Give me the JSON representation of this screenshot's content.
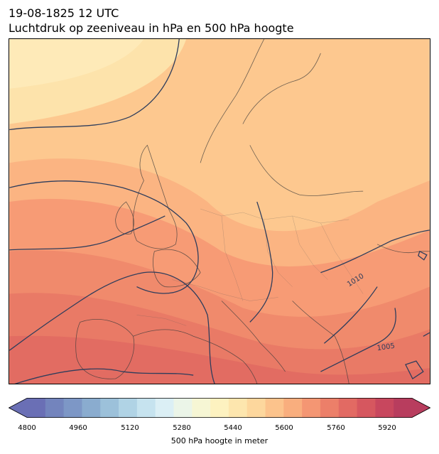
{
  "title": {
    "line1": "19-08-1825 12 UTC",
    "line2": "Luchtdruk op zeeniveau in hPa en 500 hPa hoogte"
  },
  "isobar_labels": [
    "1010",
    "1005"
  ],
  "colorbar": {
    "label": "500 hPa hoogte in meter",
    "ticks": [
      "4800",
      "4960",
      "5120",
      "5280",
      "5440",
      "5600",
      "5760",
      "5920"
    ],
    "colors": [
      "#6a6fb5",
      "#7384bd",
      "#7d97c6",
      "#8aaccf",
      "#9cc1da",
      "#b0d3e5",
      "#c6e3ef",
      "#dbeff5",
      "#ebf5e8",
      "#f6f6d4",
      "#fdf2c0",
      "#fde6ae",
      "#fdd79d",
      "#fcc38c",
      "#f9ae7e",
      "#f49673",
      "#ec7f69",
      "#e26a63",
      "#d6575f",
      "#c8475e",
      "#b83d5e"
    ]
  },
  "chart_data": {
    "type": "contour-map",
    "region": "Europe",
    "fill_field": "500 hPa height (m)",
    "line_field": "Sea level pressure (hPa)",
    "isobar_labels": [
      1010,
      1005
    ],
    "colorbar_range": [
      4800,
      5920
    ]
  }
}
